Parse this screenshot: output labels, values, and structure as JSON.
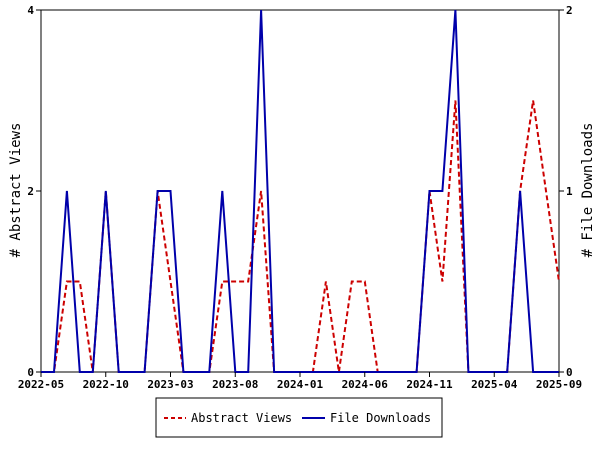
{
  "chart_data": {
    "type": "line",
    "x_ticks": [
      "2022-05",
      "2022-10",
      "2023-03",
      "2023-08",
      "2024-01",
      "2024-06",
      "2024-11",
      "2025-04",
      "2025-09"
    ],
    "y_left_label": "# Abstract Views",
    "y_right_label": "# File Downloads",
    "y_left_ticks": [
      0,
      2,
      4
    ],
    "y_right_ticks": [
      0,
      1,
      2
    ],
    "ylim_left": [
      0,
      4
    ],
    "ylim_right": [
      0,
      2
    ],
    "x_months": [
      "2022-05",
      "2022-06",
      "2022-07",
      "2022-08",
      "2022-09",
      "2022-10",
      "2022-11",
      "2022-12",
      "2023-01",
      "2023-02",
      "2023-03",
      "2023-04",
      "2023-05",
      "2023-06",
      "2023-07",
      "2023-08",
      "2023-09",
      "2023-10",
      "2023-11",
      "2023-12",
      "2024-01",
      "2024-02",
      "2024-03",
      "2024-04",
      "2024-05",
      "2024-06",
      "2024-07",
      "2024-08",
      "2024-09",
      "2024-10",
      "2024-11",
      "2024-12",
      "2025-01",
      "2025-02",
      "2025-03",
      "2025-04",
      "2025-05",
      "2025-06",
      "2025-07",
      "2025-08",
      "2025-09"
    ],
    "series": [
      {
        "name": "Abstract Views",
        "color": "#cc0000",
        "dash": "dashed",
        "axis": "left",
        "values": [
          0,
          0,
          1,
          1,
          0,
          2,
          0,
          0,
          0,
          2,
          1,
          0,
          0,
          0,
          1,
          1,
          1,
          2,
          0,
          0,
          0,
          0,
          1,
          0,
          1,
          1,
          0,
          0,
          0,
          0,
          2,
          1,
          3,
          0,
          0,
          0,
          0,
          2,
          3,
          2,
          1
        ]
      },
      {
        "name": "File Downloads",
        "color": "#0000aa",
        "dash": "solid",
        "axis": "right",
        "values": [
          0,
          0,
          1,
          0,
          0,
          1,
          0,
          0,
          0,
          1,
          1,
          0,
          0,
          0,
          1,
          0,
          0,
          2,
          0,
          0,
          0,
          0,
          0,
          0,
          0,
          0,
          0,
          0,
          0,
          0,
          1,
          1,
          2,
          0,
          0,
          0,
          0,
          1,
          0,
          0,
          0
        ]
      }
    ],
    "grid": false,
    "legend": "bottom-center"
  }
}
